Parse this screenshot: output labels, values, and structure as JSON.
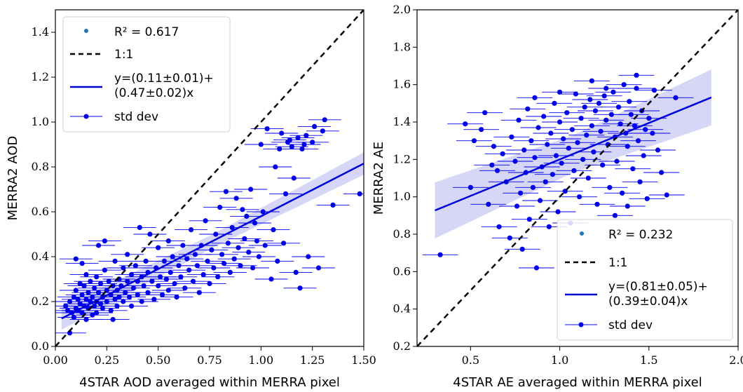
{
  "chart_data": [
    {
      "type": "scatter",
      "xlabel": "4STAR AOD averaged within MERRA pixel",
      "ylabel": "MERRA2 AOD",
      "xlim": [
        0.0,
        1.5
      ],
      "ylim": [
        0.0,
        1.5
      ],
      "xticks": [
        "0.00",
        "0.25",
        "0.50",
        "0.75",
        "1.00",
        "1.25",
        "1.50"
      ],
      "yticks": [
        "0.0",
        "0.2",
        "0.4",
        "0.6",
        "0.8",
        "1.0",
        "1.2",
        "1.4"
      ],
      "legend_position": "upper-left",
      "legend": {
        "r2": "R² = 0.617",
        "one_to_one": "1:1",
        "fit_line1": "y=(0.11±0.01)+",
        "fit_line2": "(0.47±0.02)x",
        "std": "std dev"
      },
      "fit": {
        "intercept": 0.11,
        "slope": 0.47,
        "x_range": [
          0.03,
          1.5
        ],
        "ci_halfwidth": [
          0.03,
          0.05
        ]
      },
      "one_to_one_line": true,
      "grid": false,
      "colors": {
        "points": "#0000ee",
        "fit": "#0000dd",
        "band": "#c8c8f4",
        "r2_marker": "#1f77b4"
      },
      "points": [
        [
          0.05,
          0.18
        ],
        [
          0.06,
          0.16
        ],
        [
          0.07,
          0.06
        ],
        [
          0.07,
          0.2
        ],
        [
          0.08,
          0.15
        ],
        [
          0.09,
          0.22
        ],
        [
          0.09,
          0.13
        ],
        [
          0.1,
          0.17
        ],
        [
          0.1,
          0.25
        ],
        [
          0.1,
          0.39
        ],
        [
          0.11,
          0.21
        ],
        [
          0.11,
          0.16
        ],
        [
          0.12,
          0.28
        ],
        [
          0.12,
          0.19
        ],
        [
          0.13,
          0.23
        ],
        [
          0.13,
          0.15
        ],
        [
          0.13,
          0.37
        ],
        [
          0.14,
          0.27
        ],
        [
          0.14,
          0.18
        ],
        [
          0.15,
          0.21
        ],
        [
          0.15,
          0.32
        ],
        [
          0.15,
          0.12
        ],
        [
          0.16,
          0.24
        ],
        [
          0.16,
          0.17
        ],
        [
          0.17,
          0.2
        ],
        [
          0.17,
          0.29
        ],
        [
          0.18,
          0.14
        ],
        [
          0.18,
          0.22
        ],
        [
          0.19,
          0.26
        ],
        [
          0.19,
          0.18
        ],
        [
          0.2,
          0.31
        ],
        [
          0.2,
          0.2
        ],
        [
          0.2,
          0.15
        ],
        [
          0.21,
          0.24
        ],
        [
          0.21,
          0.45
        ],
        [
          0.22,
          0.19
        ],
        [
          0.22,
          0.28
        ],
        [
          0.23,
          0.22
        ],
        [
          0.23,
          0.17
        ],
        [
          0.24,
          0.34
        ],
        [
          0.24,
          0.47
        ],
        [
          0.25,
          0.25
        ],
        [
          0.25,
          0.2
        ],
        [
          0.26,
          0.29
        ],
        [
          0.27,
          0.16
        ],
        [
          0.27,
          0.23
        ],
        [
          0.28,
          0.27
        ],
        [
          0.28,
          0.12
        ],
        [
          0.29,
          0.21
        ],
        [
          0.29,
          0.38
        ],
        [
          0.3,
          0.25
        ],
        [
          0.3,
          0.18
        ],
        [
          0.31,
          0.3
        ],
        [
          0.31,
          0.22
        ],
        [
          0.32,
          0.27
        ],
        [
          0.33,
          0.2
        ],
        [
          0.33,
          0.35
        ],
        [
          0.34,
          0.24
        ],
        [
          0.35,
          0.29
        ],
        [
          0.35,
          0.41
        ],
        [
          0.36,
          0.22
        ],
        [
          0.37,
          0.32
        ],
        [
          0.37,
          0.18
        ],
        [
          0.38,
          0.26
        ],
        [
          0.39,
          0.36
        ],
        [
          0.4,
          0.23
        ],
        [
          0.4,
          0.29
        ],
        [
          0.41,
          0.53
        ],
        [
          0.42,
          0.31
        ],
        [
          0.42,
          0.2
        ],
        [
          0.43,
          0.27
        ],
        [
          0.44,
          0.38
        ],
        [
          0.45,
          0.24
        ],
        [
          0.45,
          0.33
        ],
        [
          0.46,
          0.5
        ],
        [
          0.47,
          0.29
        ],
        [
          0.48,
          0.21
        ],
        [
          0.49,
          0.35
        ],
        [
          0.5,
          0.27
        ],
        [
          0.5,
          0.44
        ],
        [
          0.51,
          0.31
        ],
        [
          0.52,
          0.23
        ],
        [
          0.53,
          0.38
        ],
        [
          0.54,
          0.3
        ],
        [
          0.55,
          0.47
        ],
        [
          0.55,
          0.25
        ],
        [
          0.56,
          0.33
        ],
        [
          0.57,
          0.4
        ],
        [
          0.58,
          0.28
        ],
        [
          0.59,
          0.22
        ],
        [
          0.6,
          0.36
        ],
        [
          0.61,
          0.31
        ],
        [
          0.62,
          0.45
        ],
        [
          0.63,
          0.26
        ],
        [
          0.64,
          0.39
        ],
        [
          0.65,
          0.34
        ],
        [
          0.66,
          0.52
        ],
        [
          0.67,
          0.29
        ],
        [
          0.68,
          0.41
        ],
        [
          0.69,
          0.36
        ],
        [
          0.7,
          0.24
        ],
        [
          0.71,
          0.45
        ],
        [
          0.72,
          0.32
        ],
        [
          0.73,
          0.56
        ],
        [
          0.74,
          0.38
        ],
        [
          0.75,
          0.28
        ],
        [
          0.76,
          0.43
        ],
        [
          0.77,
          0.35
        ],
        [
          0.78,
          0.5
        ],
        [
          0.79,
          0.31
        ],
        [
          0.8,
          0.62
        ],
        [
          0.81,
          0.41
        ],
        [
          0.82,
          0.37
        ],
        [
          0.83,
          0.69
        ],
        [
          0.84,
          0.46
        ],
        [
          0.85,
          0.33
        ],
        [
          0.86,
          0.53
        ],
        [
          0.87,
          0.39
        ],
        [
          0.88,
          0.66
        ],
        [
          0.89,
          0.44
        ],
        [
          0.9,
          0.36
        ],
        [
          0.91,
          0.61
        ],
        [
          0.92,
          0.48
        ],
        [
          0.93,
          0.58
        ],
        [
          0.94,
          0.42
        ],
        [
          0.95,
          0.7
        ],
        [
          0.96,
          0.35
        ],
        [
          0.97,
          0.55
        ],
        [
          0.98,
          0.47
        ],
        [
          0.99,
          0.4
        ],
        [
          1.0,
          0.9
        ],
        [
          1.01,
          0.6
        ],
        [
          1.02,
          0.45
        ],
        [
          1.03,
          0.97
        ],
        [
          1.05,
          0.3
        ],
        [
          1.06,
          0.52
        ],
        [
          1.07,
          0.8
        ],
        [
          1.08,
          0.38
        ],
        [
          1.09,
          0.88
        ],
        [
          1.1,
          0.95
        ],
        [
          1.11,
          0.46
        ],
        [
          1.12,
          0.68
        ],
        [
          1.13,
          0.91
        ],
        [
          1.14,
          0.92
        ],
        [
          1.15,
          0.89
        ],
        [
          1.16,
          0.75
        ],
        [
          1.17,
          0.33
        ],
        [
          1.18,
          0.93
        ],
        [
          1.19,
          0.26
        ],
        [
          1.2,
          0.88
        ],
        [
          1.21,
          0.9
        ],
        [
          1.22,
          0.94
        ],
        [
          1.23,
          0.4
        ],
        [
          1.25,
          0.91
        ],
        [
          1.26,
          0.98
        ],
        [
          1.28,
          0.35
        ],
        [
          1.3,
          0.96
        ],
        [
          1.31,
          1.01
        ],
        [
          1.35,
          0.63
        ],
        [
          1.48,
          0.68
        ]
      ],
      "xerr": 0.08
    },
    {
      "type": "scatter",
      "xlabel": "4STAR AE averaged within MERRA pixel",
      "ylabel": "MERRA2 AE",
      "xlim": [
        0.2,
        2.0
      ],
      "ylim": [
        0.2,
        2.0
      ],
      "xticks": [
        "0.5",
        "1.0",
        "1.5",
        "2.0"
      ],
      "yticks": [
        "0.2",
        "0.4",
        "0.6",
        "0.8",
        "1.0",
        "1.2",
        "1.4",
        "1.6",
        "1.8",
        "2.0"
      ],
      "legend_position": "lower-right",
      "legend": {
        "r2": "R² = 0.232",
        "one_to_one": "1:1",
        "fit_line1": "y=(0.81±0.05)+",
        "fit_line2": "(0.39±0.04)x",
        "std": "std dev"
      },
      "fit": {
        "intercept": 0.81,
        "slope": 0.39,
        "x_range": [
          0.3,
          1.85
        ],
        "ci_halfwidth": [
          0.1,
          0.15
        ]
      },
      "one_to_one_line": true,
      "grid": false,
      "colors": {
        "points": "#0000ee",
        "fit": "#0000dd",
        "band": "#c8c8f4",
        "r2_marker": "#1f77b4"
      },
      "points": [
        [
          0.33,
          0.69
        ],
        [
          0.47,
          1.39
        ],
        [
          0.56,
          1.36
        ],
        [
          0.58,
          1.45
        ],
        [
          0.52,
          1.3
        ],
        [
          0.5,
          1.05
        ],
        [
          0.62,
          1.17
        ],
        [
          0.6,
          0.96
        ],
        [
          0.63,
          1.27
        ],
        [
          0.65,
          1.14
        ],
        [
          0.66,
          0.84
        ],
        [
          0.68,
          1.23
        ],
        [
          0.7,
          1.08
        ],
        [
          0.72,
          0.78
        ],
        [
          0.73,
          1.32
        ],
        [
          0.75,
          1.19
        ],
        [
          0.76,
          0.95
        ],
        [
          0.77,
          1.41
        ],
        [
          0.78,
          1.02
        ],
        [
          0.79,
          0.72
        ],
        [
          0.8,
          1.25
        ],
        [
          0.81,
          1.13
        ],
        [
          0.82,
          1.47
        ],
        [
          0.83,
          0.88
        ],
        [
          0.84,
          1.3
        ],
        [
          0.85,
          1.05
        ],
        [
          0.86,
          1.21
        ],
        [
          0.87,
          0.62
        ],
        [
          0.88,
          1.37
        ],
        [
          0.89,
          0.98
        ],
        [
          0.9,
          1.16
        ],
        [
          0.91,
          1.43
        ],
        [
          0.92,
          1.08
        ],
        [
          0.93,
          1.28
        ],
        [
          0.94,
          0.84
        ],
        [
          0.95,
          1.34
        ],
        [
          0.96,
          1.12
        ],
        [
          0.97,
          1.5
        ],
        [
          0.98,
          1.22
        ],
        [
          0.99,
          0.92
        ],
        [
          1.0,
          1.4
        ],
        [
          1.01,
          1.18
        ],
        [
          1.02,
          1.31
        ],
        [
          1.03,
          1.03
        ],
        [
          1.04,
          1.45
        ],
        [
          1.05,
          1.26
        ],
        [
          1.06,
          0.86
        ],
        [
          1.07,
          1.36
        ],
        [
          1.08,
          1.14
        ],
        [
          1.09,
          1.55
        ],
        [
          1.1,
          1.29
        ],
        [
          1.11,
          1.0
        ],
        [
          1.12,
          1.42
        ],
        [
          1.13,
          1.2
        ],
        [
          1.14,
          1.48
        ],
        [
          1.15,
          1.33
        ],
        [
          1.16,
          1.1
        ],
        [
          1.17,
          1.52
        ],
        [
          1.18,
          1.38
        ],
        [
          1.19,
          1.24
        ],
        [
          1.2,
          1.46
        ],
        [
          1.21,
          0.96
        ],
        [
          1.22,
          1.5
        ],
        [
          1.23,
          1.35
        ],
        [
          1.24,
          1.17
        ],
        [
          1.25,
          1.54
        ],
        [
          1.26,
          1.41
        ],
        [
          1.27,
          1.28
        ],
        [
          1.28,
          1.05
        ],
        [
          1.29,
          1.44
        ],
        [
          1.3,
          1.56
        ],
        [
          1.31,
          1.32
        ],
        [
          1.32,
          1.19
        ],
        [
          1.33,
          1.48
        ],
        [
          1.34,
          1.39
        ],
        [
          1.35,
          1.02
        ],
        [
          1.36,
          1.6
        ],
        [
          1.37,
          1.34
        ],
        [
          1.38,
          1.27
        ],
        [
          1.39,
          1.51
        ],
        [
          1.4,
          1.44
        ],
        [
          1.41,
          1.15
        ],
        [
          1.42,
          1.38
        ],
        [
          1.43,
          1.58
        ],
        [
          1.44,
          1.3
        ],
        [
          1.45,
          1.08
        ],
        [
          1.46,
          1.46
        ],
        [
          1.47,
          1.22
        ],
        [
          1.48,
          1.36
        ],
        [
          1.49,
          0.99
        ],
        [
          1.5,
          1.42
        ],
        [
          1.52,
          1.34
        ],
        [
          1.53,
          1.57
        ],
        [
          1.55,
          1.25
        ],
        [
          1.57,
          1.13
        ],
        [
          1.6,
          1.01
        ],
        [
          1.43,
          1.65
        ],
        [
          1.65,
          1.53
        ],
        [
          1.38,
          0.95
        ],
        [
          1.31,
          0.9
        ],
        [
          1.26,
          1.58
        ],
        [
          1.18,
          1.62
        ],
        [
          1.0,
          1.56
        ],
        [
          0.86,
          1.53
        ]
      ],
      "xerr": 0.1
    }
  ]
}
